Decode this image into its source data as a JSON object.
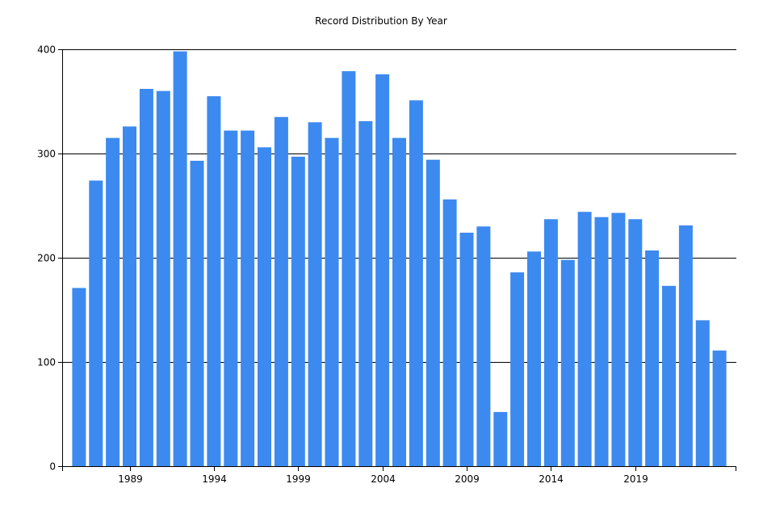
{
  "chart_data": {
    "type": "bar",
    "title": "Record Distribution By Year",
    "xlabel": "",
    "ylabel": "",
    "years": [
      1986,
      1987,
      1988,
      1989,
      1990,
      1991,
      1992,
      1993,
      1994,
      1995,
      1996,
      1997,
      1998,
      1999,
      2000,
      2001,
      2002,
      2003,
      2004,
      2005,
      2006,
      2007,
      2008,
      2009,
      2010,
      2011,
      2012,
      2013,
      2014,
      2015,
      2016,
      2017,
      2018,
      2019,
      2020,
      2021,
      2022,
      2023,
      2024
    ],
    "values": [
      171,
      274,
      315,
      326,
      362,
      360,
      398,
      293,
      355,
      322,
      322,
      306,
      335,
      297,
      330,
      315,
      379,
      331,
      376,
      315,
      351,
      294,
      256,
      224,
      230,
      52,
      186,
      206,
      237,
      198,
      244,
      239,
      243,
      237,
      207,
      173,
      231,
      140,
      111
    ],
    "x_tick_labels": [
      "1989",
      "1994",
      "1999",
      "2004",
      "2009",
      "2014",
      "2019"
    ],
    "y_tick_labels": [
      "0",
      "100",
      "200",
      "300",
      "400"
    ],
    "ylim": [
      0,
      400
    ],
    "grid": "horizontal",
    "bar_color": "#3c8af0"
  }
}
